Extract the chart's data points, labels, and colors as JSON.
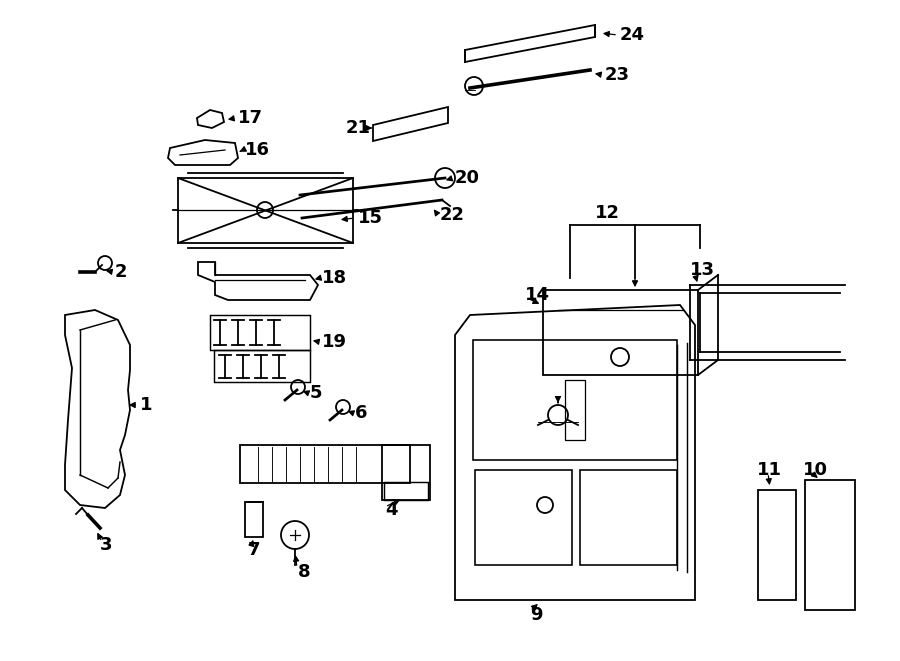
{
  "bg": "#ffffff",
  "lc": "#000000",
  "lw": 1.3,
  "fs": 13,
  "fig_w": 9.0,
  "fig_h": 6.61,
  "dpi": 100
}
